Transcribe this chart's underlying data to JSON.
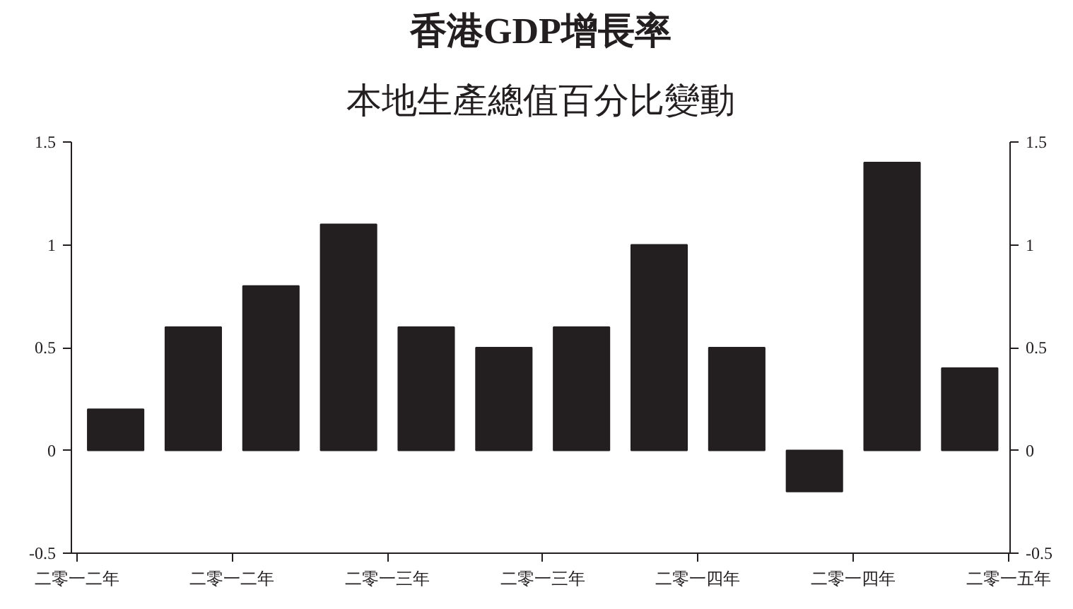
{
  "chart_data": {
    "type": "bar",
    "title": "香港GDP增長率",
    "subtitle": "本地生產總值百分比變動",
    "categories": [
      null,
      null,
      null,
      null,
      null,
      null,
      null,
      null,
      null,
      null,
      null,
      null
    ],
    "values": [
      0.2,
      0.6,
      0.8,
      1.1,
      0.6,
      0.5,
      0.6,
      1.0,
      0.5,
      -0.2,
      1.4,
      0.4
    ],
    "color": "#231f20",
    "annotations": [
      "二零一二年",
      "二零一二年",
      "二零一三年",
      "二零一三年",
      "二零一四年",
      "二零一四年",
      "二零一五年"
    ],
    "ylim": [
      -0.5,
      1.5
    ],
    "yticks": [
      -0.5,
      0,
      0.5,
      1,
      1.5
    ],
    "y2lim": [
      -0.5,
      1.5
    ],
    "y2ticks": [
      -0.5,
      0,
      0.5,
      1,
      1.5
    ],
    "grid": false
  }
}
